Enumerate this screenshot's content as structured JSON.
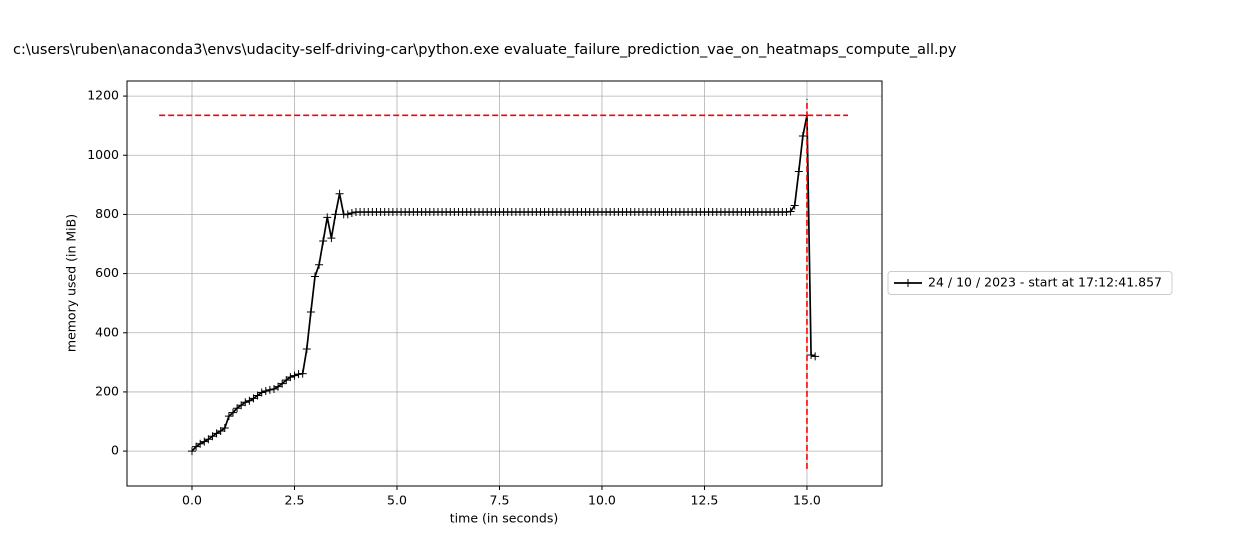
{
  "chart_data": {
    "type": "line",
    "title": "c:\\users\\ruben\\anaconda3\\envs\\udacity-self-driving-car\\python.exe evaluate_failure_prediction_vae_on_heatmaps_compute_all.py",
    "x_label": "time (in seconds)",
    "y_label": "memory used (in MiB)",
    "x": [
      0.0,
      0.1,
      0.2,
      0.3,
      0.4,
      0.5,
      0.6,
      0.7,
      0.8,
      0.9,
      1.0,
      1.1,
      1.2,
      1.3,
      1.4,
      1.5,
      1.6,
      1.7,
      1.8,
      1.9,
      2.0,
      2.1,
      2.2,
      2.3,
      2.4,
      2.5,
      2.6,
      2.7,
      2.8,
      2.9,
      3.0,
      3.1,
      3.2,
      3.3,
      3.4,
      3.5,
      3.6,
      3.7,
      3.8,
      3.9,
      4.0,
      4.1,
      4.2,
      4.3,
      4.4,
      4.5,
      4.6,
      4.7,
      4.8,
      4.9,
      5.0,
      5.1,
      5.2,
      5.3,
      5.4,
      5.5,
      5.6,
      5.7,
      5.8,
      5.9,
      6.0,
      6.1,
      6.2,
      6.3,
      6.4,
      6.5,
      6.6,
      6.7,
      6.8,
      6.9,
      7.0,
      7.1,
      7.2,
      7.3,
      7.4,
      7.5,
      7.6,
      7.7,
      7.8,
      7.9,
      8.0,
      8.1,
      8.2,
      8.3,
      8.4,
      8.5,
      8.6,
      8.7,
      8.8,
      8.9,
      9.0,
      9.1,
      9.2,
      9.3,
      9.4,
      9.5,
      9.6,
      9.7,
      9.8,
      9.9,
      10.0,
      10.1,
      10.2,
      10.3,
      10.4,
      10.5,
      10.6,
      10.7,
      10.8,
      10.9,
      11.0,
      11.1,
      11.2,
      11.3,
      11.4,
      11.5,
      11.6,
      11.7,
      11.8,
      11.9,
      12.0,
      12.1,
      12.2,
      12.3,
      12.4,
      12.5,
      12.6,
      12.7,
      12.8,
      12.9,
      13.0,
      13.1,
      13.2,
      13.3,
      13.4,
      13.5,
      13.6,
      13.7,
      13.8,
      13.9,
      14.0,
      14.1,
      14.2,
      14.3,
      14.4,
      14.5,
      14.6,
      14.7,
      14.8,
      14.9,
      15.0,
      15.1,
      15.2
    ],
    "series": [
      {
        "name": "24 / 10 / 2023 - start at 17:12:41.857",
        "color": "#000000",
        "values": [
          0,
          15,
          25,
          32,
          40,
          50,
          60,
          68,
          78,
          118,
          130,
          145,
          155,
          165,
          170,
          178,
          188,
          198,
          203,
          207,
          210,
          218,
          228,
          240,
          250,
          255,
          260,
          262,
          345,
          470,
          590,
          630,
          710,
          790,
          720,
          800,
          870,
          800,
          800,
          805,
          808,
          808,
          808,
          808,
          808,
          808,
          808,
          808,
          808,
          808,
          808,
          808,
          808,
          808,
          808,
          808,
          808,
          808,
          808,
          808,
          808,
          808,
          808,
          808,
          808,
          808,
          808,
          808,
          808,
          808,
          808,
          808,
          808,
          808,
          808,
          808,
          808,
          808,
          808,
          808,
          808,
          808,
          808,
          808,
          808,
          808,
          808,
          808,
          808,
          808,
          808,
          808,
          808,
          808,
          808,
          808,
          808,
          808,
          808,
          808,
          808,
          808,
          808,
          808,
          808,
          808,
          808,
          808,
          808,
          808,
          808,
          808,
          808,
          808,
          808,
          808,
          808,
          808,
          808,
          808,
          808,
          808,
          808,
          808,
          808,
          808,
          808,
          808,
          808,
          808,
          808,
          808,
          808,
          808,
          808,
          808,
          808,
          808,
          808,
          808,
          808,
          808,
          808,
          808,
          808,
          808,
          810,
          830,
          945,
          1065,
          1135,
          325,
          320
        ]
      }
    ],
    "max_memory_line": {
      "y": 1135,
      "x_range": [
        -0.8,
        16.0
      ],
      "color": "#ff0000"
    },
    "max_time_line": {
      "x": 15.0,
      "y_range": [
        -60,
        1190
      ],
      "color": "#ff0000"
    },
    "xlim": [
      -1.585,
      16.83
    ],
    "ylim": [
      -118,
      1251
    ],
    "xticks": [
      {
        "value": 0,
        "label": "0.0"
      },
      2.5,
      {
        "value": 5,
        "label": "5.0"
      },
      7.5,
      {
        "value": 10,
        "label": "10.0"
      },
      12.5,
      {
        "value": 15,
        "label": "15.0"
      }
    ],
    "yticks": [
      0,
      200,
      400,
      600,
      800,
      1000,
      1200
    ],
    "grid": true,
    "legend": "outside right"
  }
}
